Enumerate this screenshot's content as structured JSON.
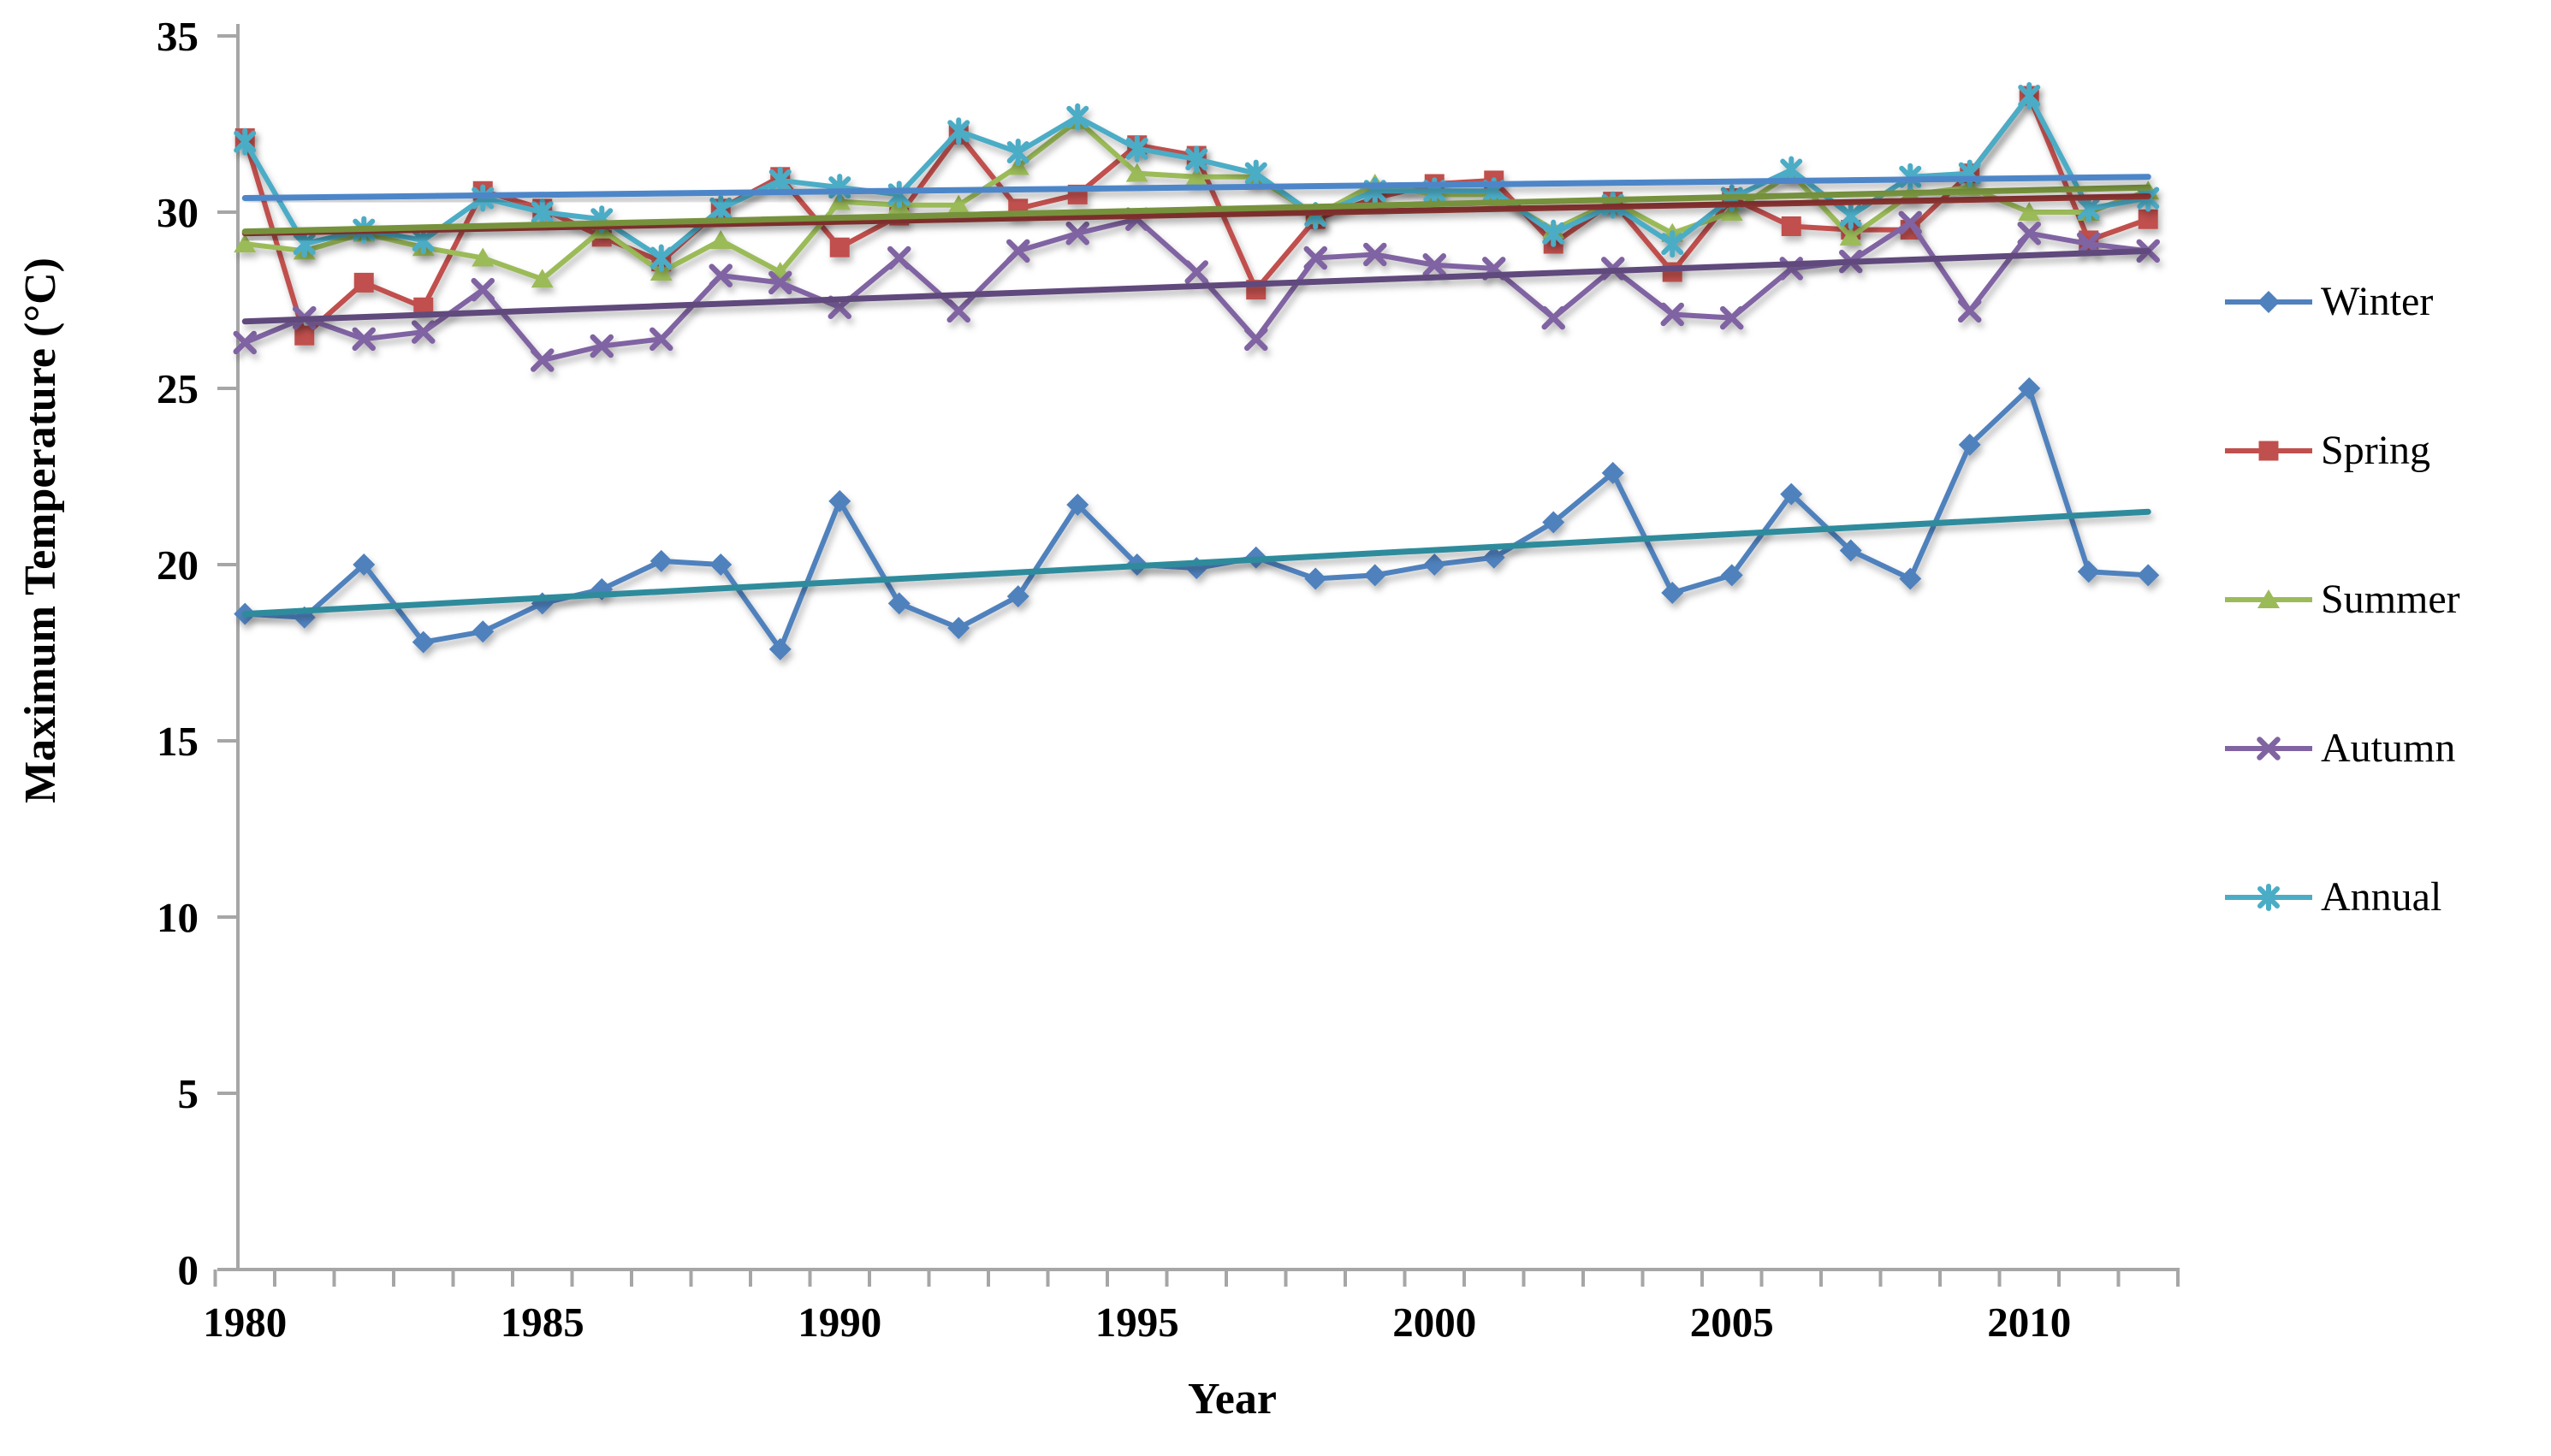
{
  "chart_data": {
    "type": "line",
    "title": "",
    "xlabel": "Year",
    "ylabel": "Maximum Temperature (°C)",
    "x": [
      1980,
      1981,
      1982,
      1983,
      1984,
      1985,
      1986,
      1987,
      1988,
      1989,
      1990,
      1991,
      1992,
      1993,
      1994,
      1995,
      1996,
      1997,
      1998,
      1999,
      2000,
      2001,
      2002,
      2003,
      2004,
      2005,
      2006,
      2007,
      2008,
      2009,
      2010,
      2011,
      2012
    ],
    "x_tick_labels": [
      1980,
      1985,
      1990,
      1995,
      2000,
      2005,
      2010
    ],
    "y_ticks": [
      0,
      5,
      10,
      15,
      20,
      25,
      30,
      35
    ],
    "ylim": [
      0,
      35
    ],
    "grid": "off",
    "legend_position": "right",
    "axis_color": "#A6A6A6",
    "text_color": "#000000",
    "series": [
      {
        "name": "Winter",
        "color": "#4F81BD",
        "marker": "diamond",
        "values": [
          18.6,
          18.5,
          20.0,
          17.8,
          18.1,
          18.9,
          19.3,
          20.1,
          20.0,
          17.6,
          21.8,
          18.9,
          18.2,
          19.1,
          21.7,
          20.0,
          19.9,
          20.2,
          19.6,
          19.7,
          20.0,
          20.2,
          21.2,
          22.6,
          19.2,
          19.7,
          22.0,
          20.4,
          19.6,
          23.4,
          25.0,
          19.8,
          19.7
        ],
        "trend": {
          "start": 18.6,
          "end": 21.5,
          "color": "#2E8B9C"
        }
      },
      {
        "name": "Spring",
        "color": "#C0504D",
        "marker": "square",
        "values": [
          32.1,
          26.5,
          28.0,
          27.3,
          30.6,
          30.1,
          29.3,
          28.6,
          30.1,
          31.0,
          29.0,
          29.9,
          32.2,
          30.1,
          30.5,
          31.9,
          31.6,
          27.8,
          29.8,
          30.4,
          30.8,
          30.9,
          29.1,
          30.3,
          28.3,
          30.4,
          29.6,
          29.5,
          29.5,
          31.1,
          33.3,
          29.2,
          29.8
        ],
        "trend": {
          "start": 29.4,
          "end": 30.45,
          "color": "#953735"
        }
      },
      {
        "name": "Summer",
        "color": "#9BBB59",
        "marker": "triangle",
        "values": [
          29.1,
          28.9,
          29.4,
          29.0,
          28.7,
          28.1,
          29.5,
          28.3,
          29.2,
          28.3,
          30.3,
          30.2,
          30.2,
          31.3,
          32.6,
          31.1,
          31.0,
          31.0,
          29.9,
          30.8,
          30.5,
          30.5,
          29.5,
          30.3,
          29.4,
          30.0,
          31.1,
          29.3,
          30.5,
          30.7,
          30.0,
          30.0,
          30.6
        ],
        "trend": {
          "start": 29.45,
          "end": 30.7,
          "color": "#76923C"
        }
      },
      {
        "name": "Autumn",
        "color": "#8064A2",
        "marker": "x",
        "values": [
          26.3,
          27.0,
          26.4,
          26.6,
          27.8,
          25.8,
          26.2,
          26.4,
          28.2,
          28.0,
          27.3,
          28.7,
          27.2,
          28.9,
          29.4,
          29.8,
          28.3,
          26.4,
          28.7,
          28.8,
          28.5,
          28.4,
          27.0,
          28.4,
          27.1,
          27.0,
          28.4,
          28.6,
          29.7,
          27.2,
          29.4,
          29.1,
          28.9
        ],
        "trend": {
          "start": 26.9,
          "end": 28.9,
          "color": "#604A7B"
        }
      },
      {
        "name": "Annual",
        "color": "#4BACC6",
        "marker": "star",
        "values": [
          32.0,
          29.1,
          29.5,
          29.2,
          30.4,
          30.0,
          29.8,
          28.7,
          30.1,
          30.9,
          30.7,
          30.5,
          32.3,
          31.7,
          32.7,
          31.8,
          31.5,
          31.1,
          29.9,
          30.6,
          30.6,
          30.6,
          29.4,
          30.2,
          29.1,
          30.4,
          31.2,
          29.9,
          31.0,
          31.1,
          33.3,
          30.1,
          30.4
        ],
        "trend": {
          "start": 30.4,
          "end": 31.0,
          "color": "#4E86C8"
        }
      }
    ]
  }
}
